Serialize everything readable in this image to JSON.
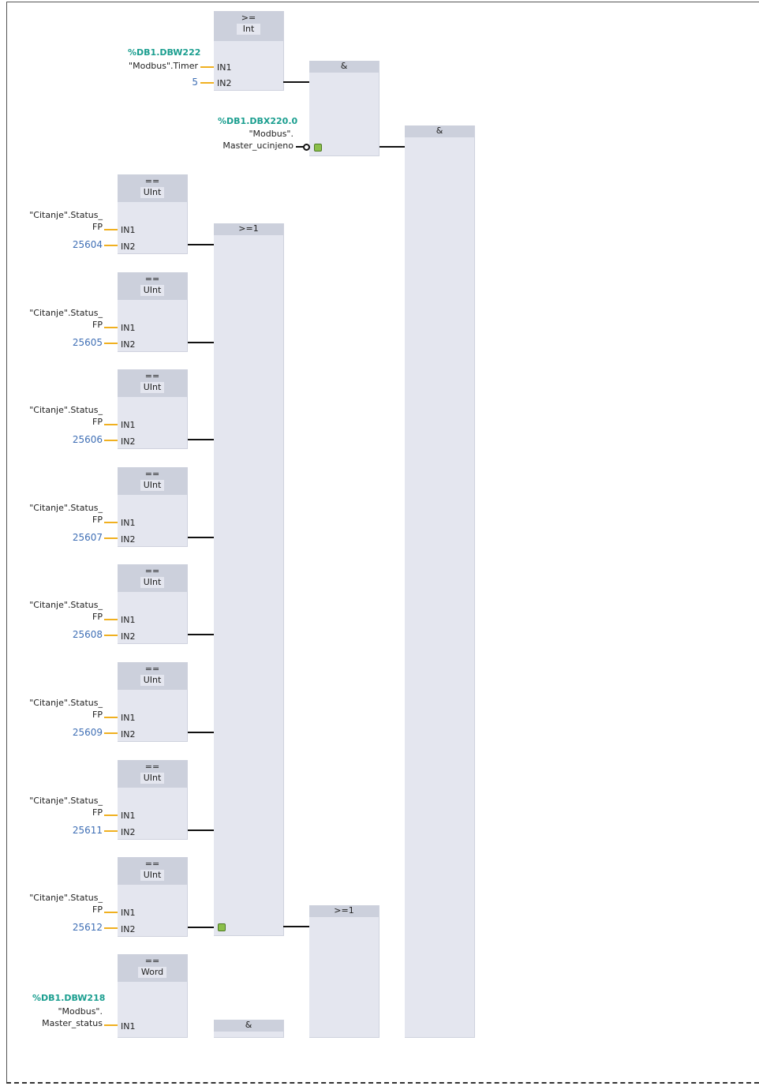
{
  "cmp_int": {
    "op": ">=",
    "type": "Int",
    "in1": "IN1",
    "in2": "IN2",
    "addr": "%DB1.DBW222",
    "tag": "\"Modbus\".Timer",
    "const": "5"
  },
  "and_top": {
    "op": "&",
    "addr": "%DB1.DBX220.0",
    "tag1": "\"Modbus\".",
    "tag2": "Master_ucinjeno"
  },
  "and_main": {
    "op": "&"
  },
  "or_mid": {
    "op": ">=1"
  },
  "or_bottom": {
    "op": ">=1"
  },
  "and_bottom": {
    "op": "&"
  },
  "cmp_uint": [
    {
      "op": "==",
      "type": "UInt",
      "in1": "IN1",
      "in2": "IN2",
      "tag1": "\"Citanje\".Status_",
      "tag2": "FP",
      "const": "25604"
    },
    {
      "op": "==",
      "type": "UInt",
      "in1": "IN1",
      "in2": "IN2",
      "tag1": "\"Citanje\".Status_",
      "tag2": "FP",
      "const": "25605"
    },
    {
      "op": "==",
      "type": "UInt",
      "in1": "IN1",
      "in2": "IN2",
      "tag1": "\"Citanje\".Status_",
      "tag2": "FP",
      "const": "25606"
    },
    {
      "op": "==",
      "type": "UInt",
      "in1": "IN1",
      "in2": "IN2",
      "tag1": "\"Citanje\".Status_",
      "tag2": "FP",
      "const": "25607"
    },
    {
      "op": "==",
      "type": "UInt",
      "in1": "IN1",
      "in2": "IN2",
      "tag1": "\"Citanje\".Status_",
      "tag2": "FP",
      "const": "25608"
    },
    {
      "op": "==",
      "type": "UInt",
      "in1": "IN1",
      "in2": "IN2",
      "tag1": "\"Citanje\".Status_",
      "tag2": "FP",
      "const": "25609"
    },
    {
      "op": "==",
      "type": "UInt",
      "in1": "IN1",
      "in2": "IN2",
      "tag1": "\"Citanje\".Status_",
      "tag2": "FP",
      "const": "25611"
    },
    {
      "op": "==",
      "type": "UInt",
      "in1": "IN1",
      "in2": "IN2",
      "tag1": "\"Citanje\".Status_",
      "tag2": "FP",
      "const": "25612"
    }
  ],
  "cmp_word": {
    "op": "==",
    "type": "Word",
    "in1": "IN1",
    "addr": "%DB1.DBW218",
    "tag1": "\"Modbus\".",
    "tag2": "Master_status"
  }
}
